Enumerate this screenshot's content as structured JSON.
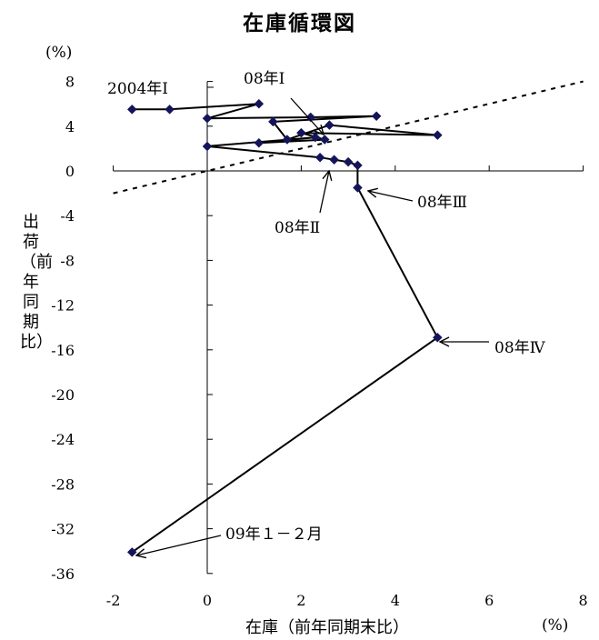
{
  "chart_data": {
    "type": "scatter",
    "title": "在庫循環図",
    "xlabel": "在庫（前年同期末比）",
    "ylabel": "出荷（前年同期比）",
    "x_unit": "(%)",
    "y_unit": "(%)",
    "xlim": [
      -2,
      8
    ],
    "ylim": [
      -36,
      8
    ],
    "xticks": [
      -2,
      0,
      2,
      4,
      6,
      8
    ],
    "yticks": [
      8,
      4,
      0,
      -4,
      -8,
      -12,
      -16,
      -20,
      -24,
      -28,
      -32,
      -36
    ],
    "grid": false,
    "reference_line": {
      "style": "dashed",
      "from": [
        -2,
        -2
      ],
      "to": [
        8,
        8
      ]
    },
    "points": [
      {
        "x": -1.6,
        "y": 5.5
      },
      {
        "x": -0.8,
        "y": 5.5
      },
      {
        "x": 1.1,
        "y": 6.0
      },
      {
        "x": 0.0,
        "y": 4.7
      },
      {
        "x": 2.2,
        "y": 4.8
      },
      {
        "x": 3.6,
        "y": 4.9
      },
      {
        "x": 1.4,
        "y": 4.4
      },
      {
        "x": 1.7,
        "y": 2.8
      },
      {
        "x": 2.6,
        "y": 4.1
      },
      {
        "x": 4.9,
        "y": 3.2
      },
      {
        "x": 2.0,
        "y": 3.4
      },
      {
        "x": 2.5,
        "y": 2.8
      },
      {
        "x": 1.1,
        "y": 2.5
      },
      {
        "x": 2.3,
        "y": 3.0
      },
      {
        "x": 0.0,
        "y": 2.2
      },
      {
        "x": 2.4,
        "y": 1.2
      },
      {
        "x": 2.7,
        "y": 1.0
      },
      {
        "x": 3.0,
        "y": 0.8
      },
      {
        "x": 3.2,
        "y": 0.5
      },
      {
        "x": 3.2,
        "y": -1.5
      },
      {
        "x": 4.9,
        "y": -14.9
      },
      {
        "x": -1.6,
        "y": -34.1
      }
    ],
    "annotations": [
      {
        "text": "2004年Ⅰ"
      },
      {
        "text": "08年Ⅰ"
      },
      {
        "text": "08年Ⅱ"
      },
      {
        "text": "08年Ⅲ"
      },
      {
        "text": "08年Ⅳ"
      },
      {
        "text": "09年１－２月"
      }
    ]
  }
}
